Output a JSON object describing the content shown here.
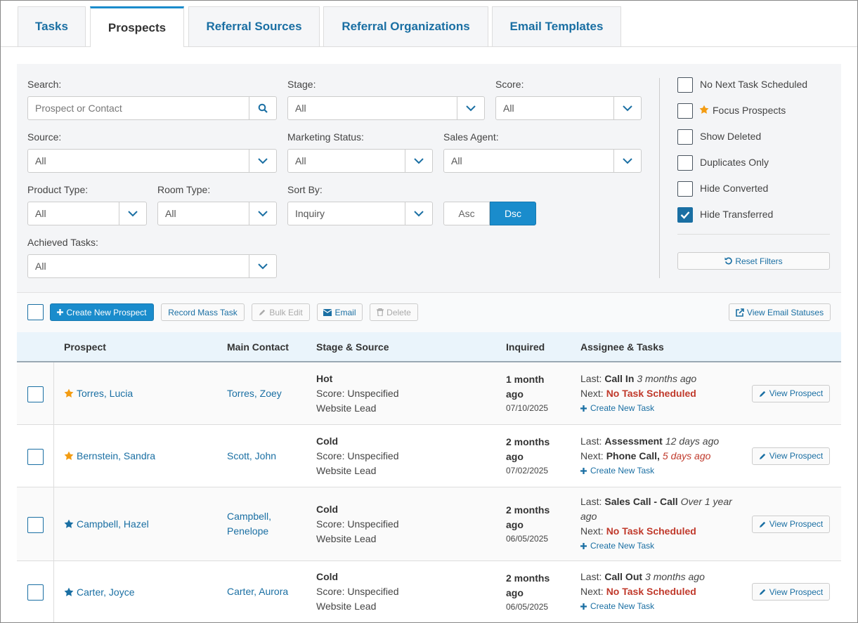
{
  "tabs": [
    {
      "label": "Tasks",
      "active": false
    },
    {
      "label": "Prospects",
      "active": true
    },
    {
      "label": "Referral Sources",
      "active": false
    },
    {
      "label": "Referral Organizations",
      "active": false
    },
    {
      "label": "Email Templates",
      "active": false
    }
  ],
  "filters": {
    "search": {
      "label": "Search:",
      "placeholder": "Prospect or Contact"
    },
    "stage": {
      "label": "Stage:",
      "value": "All"
    },
    "score": {
      "label": "Score:",
      "value": "All"
    },
    "source": {
      "label": "Source:",
      "value": "All"
    },
    "marketing_status": {
      "label": "Marketing Status:",
      "value": "All"
    },
    "sales_agent": {
      "label": "Sales Agent:",
      "value": "All"
    },
    "product_type": {
      "label": "Product Type:",
      "value": "All"
    },
    "room_type": {
      "label": "Room Type:",
      "value": "All"
    },
    "sort_by": {
      "label": "Sort By:",
      "value": "Inquiry"
    },
    "achieved_tasks": {
      "label": "Achieved Tasks:",
      "value": "All"
    }
  },
  "sort_order": [
    {
      "label": "Asc",
      "selected": false
    },
    {
      "label": "Dsc",
      "selected": true
    }
  ],
  "toggles": [
    {
      "label": "No Next Task Scheduled",
      "checked": false
    },
    {
      "label": "Focus Prospects",
      "checked": false,
      "star": true
    },
    {
      "label": "Show Deleted",
      "checked": false
    },
    {
      "label": "Duplicates Only",
      "checked": false
    },
    {
      "label": "Hide Converted",
      "checked": false
    },
    {
      "label": "Hide Transferred",
      "checked": true
    }
  ],
  "reset_filters": "Reset Filters",
  "toolbar": {
    "actions": [
      {
        "label": "Create New Prospect",
        "primary": true
      },
      {
        "label": "Record Mass Task"
      },
      {
        "label": "Bulk Edit",
        "disabled": true
      },
      {
        "label": "Email"
      },
      {
        "label": "Delete",
        "disabled": true
      }
    ],
    "view_email_statuses": "View Email Statuses"
  },
  "table": {
    "columns": [
      "Prospect",
      "Main Contact",
      "Stage & Source",
      "Inquired",
      "Assignee & Tasks"
    ],
    "rows": [
      {
        "prospect": "Torres, Lucia",
        "focus": true,
        "contact": "Torres, Zoey",
        "stage": "Hot",
        "score": "Score: Unspecified",
        "source": "Website Lead",
        "inquired": "1 month ago",
        "date": "07/10/2025",
        "last": {
          "label": "Last:",
          "task": "Call In",
          "when": "3 months ago"
        },
        "next": {
          "label": "Next:",
          "task": "No Task Scheduled",
          "scheduled": false
        },
        "create_task": "Create New Task",
        "action": "View Prospect"
      },
      {
        "prospect": "Bernstein, Sandra",
        "focus": true,
        "contact": "Scott, John",
        "stage": "Cold",
        "score": "Score: Unspecified",
        "source": "Website Lead",
        "inquired": "2 months ago",
        "date": "07/02/2025",
        "last": {
          "label": "Last:",
          "task": "Assessment",
          "when": "12 days ago"
        },
        "next": {
          "label": "Next:",
          "task": "Phone Call,",
          "when": "5 days ago",
          "scheduled": true,
          "overdue": true
        },
        "create_task": "Create New Task",
        "action": "View Prospect"
      },
      {
        "prospect": "Campbell, Hazel",
        "focus": false,
        "contact": "Campbell, Penelope",
        "stage": "Cold",
        "score": "Score: Unspecified",
        "source": "Website Lead",
        "inquired": "2 months ago",
        "date": "06/05/2025",
        "last": {
          "label": "Last:",
          "task": "Sales Call - Call",
          "when": "Over 1 year ago"
        },
        "next": {
          "label": "Next:",
          "task": "No Task Scheduled",
          "scheduled": false
        },
        "create_task": "Create New Task",
        "action": "View Prospect"
      },
      {
        "prospect": "Carter, Joyce",
        "focus": false,
        "contact": "Carter, Aurora",
        "stage": "Cold",
        "score": "Score: Unspecified",
        "source": "Website Lead",
        "inquired": "2 months ago",
        "date": "06/05/2025",
        "last": {
          "label": "Last:",
          "task": "Call Out",
          "when": "3 months ago"
        },
        "next": {
          "label": "Next:",
          "task": "No Task Scheduled",
          "scheduled": false
        },
        "create_task": "Create New Task",
        "action": "View Prospect"
      }
    ]
  }
}
